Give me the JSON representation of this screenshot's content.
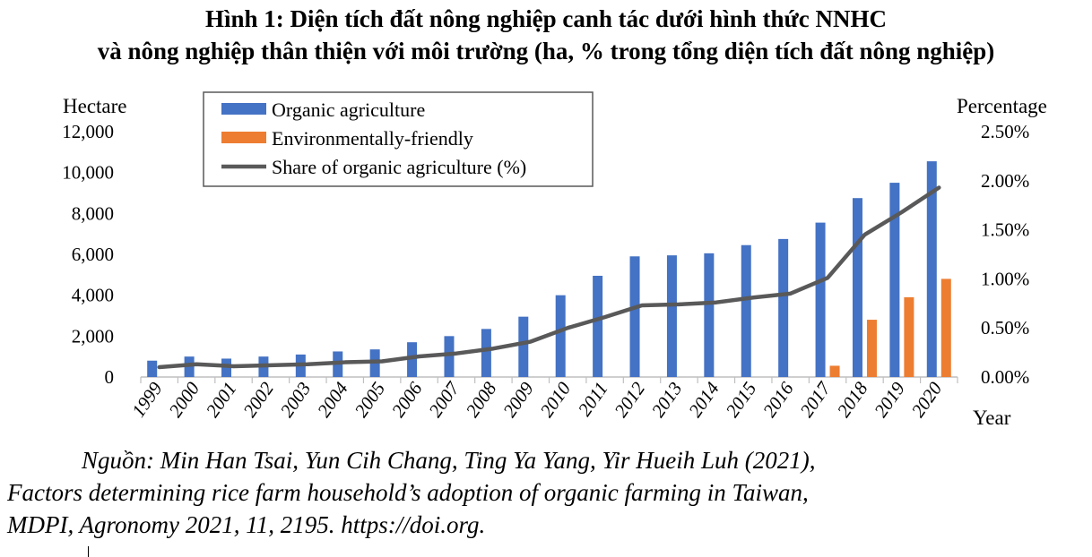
{
  "title_line1": "Hình 1: Diện tích đất nông nghiệp canh tác dưới hình thức NNHC",
  "title_line2": "và nông nghiệp thân thiện với môi trường (ha, % trong tổng diện tích đất nông nghiệp)",
  "source_line1": "Nguồn: Min Han Tsai, Yun Cih Chang, Ting Ya Yang, Yir Hueih Luh (2021),",
  "source_line2": "Factors determining rice farm household’s adoption of organic farming in Taiwan,",
  "source_line3": "MDPI, Agronomy 2021, 11, 2195. https://doi.org.",
  "chart_data": {
    "type": "bar",
    "title": "",
    "xlabel": "Year",
    "ylabel": "Hectare",
    "y2label": "Percentage",
    "ylim": [
      0,
      12000
    ],
    "y2lim": [
      0,
      2.5
    ],
    "yticks": [
      "0",
      "2,000",
      "4,000",
      "6,000",
      "8,000",
      "10,000",
      "12,000"
    ],
    "y2ticks": [
      "0.00%",
      "0.50%",
      "1.00%",
      "1.50%",
      "2.00%",
      "2.50%"
    ],
    "grid": false,
    "legend_position": "top-left",
    "categories": [
      "1999",
      "2000",
      "2001",
      "2002",
      "2003",
      "2004",
      "2005",
      "2006",
      "2007",
      "2008",
      "2009",
      "2010",
      "2011",
      "2012",
      "2013",
      "2014",
      "2015",
      "2016",
      "2017",
      "2018",
      "2019",
      "2020"
    ],
    "series": [
      {
        "name": "Organic agriculture",
        "type": "bar",
        "axis": "left",
        "color": "#4472C4",
        "values": [
          800,
          1000,
          900,
          1000,
          1100,
          1250,
          1350,
          1700,
          2000,
          2350,
          2950,
          4000,
          4950,
          5900,
          5950,
          6050,
          6450,
          6750,
          7550,
          8750,
          9500,
          10550
        ]
      },
      {
        "name": "Environmentally-friendly",
        "type": "bar",
        "axis": "left",
        "color": "#ED7D31",
        "values": [
          0,
          0,
          0,
          0,
          0,
          0,
          0,
          0,
          0,
          0,
          0,
          0,
          0,
          0,
          0,
          0,
          0,
          0,
          550,
          2800,
          3900,
          4800
        ]
      },
      {
        "name": "Share of organic agriculture (%)",
        "type": "line",
        "axis": "right",
        "color": "#595959",
        "values": [
          0.1,
          0.13,
          0.11,
          0.12,
          0.13,
          0.15,
          0.16,
          0.21,
          0.24,
          0.29,
          0.36,
          0.5,
          0.61,
          0.73,
          0.74,
          0.76,
          0.81,
          0.85,
          1.01,
          1.45,
          1.68,
          1.93
        ]
      }
    ]
  }
}
